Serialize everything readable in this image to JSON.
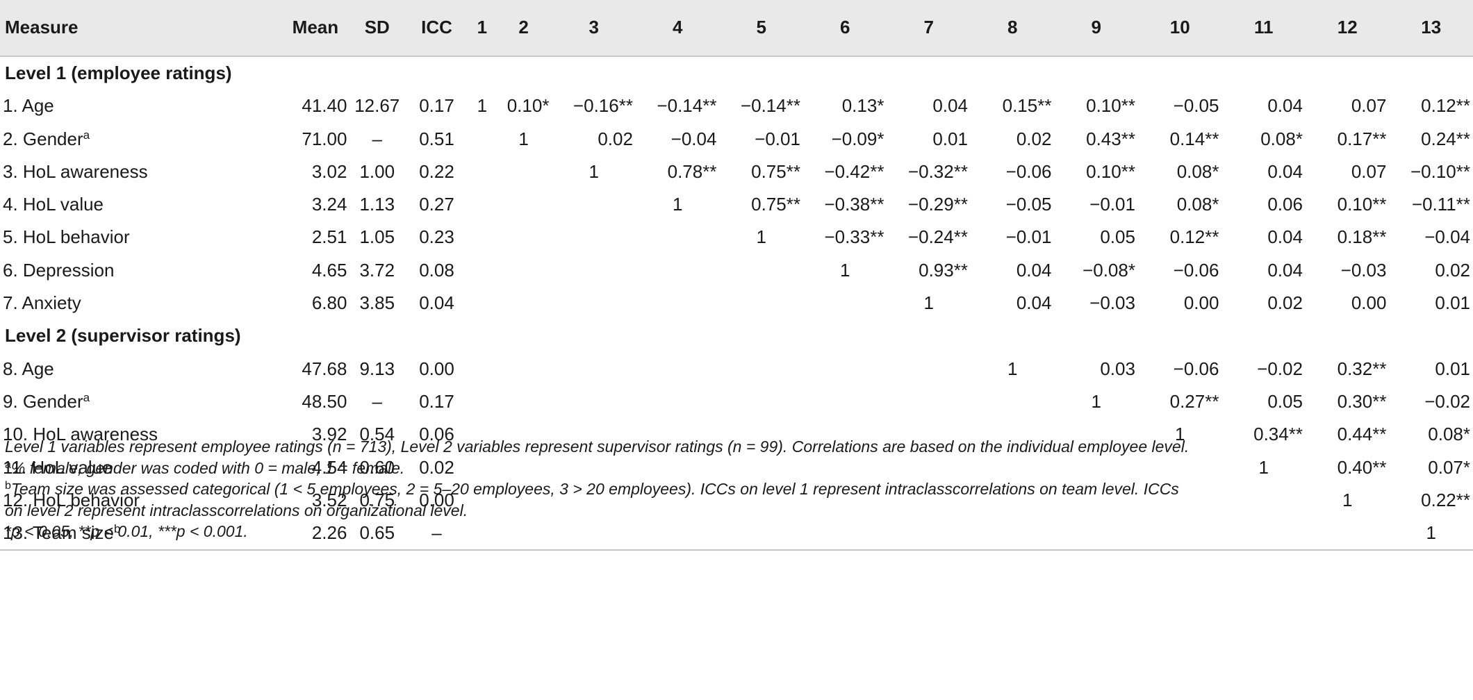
{
  "table": {
    "headers": [
      "Measure",
      "Mean",
      "SD",
      "ICC",
      "1",
      "2",
      "3",
      "4",
      "5",
      "6",
      "7",
      "8",
      "9",
      "10",
      "11",
      "12",
      "13"
    ],
    "section1": "Level 1 (employee ratings)",
    "section2": "Level 2 (supervisor ratings)",
    "rows": [
      {
        "label": "1. Age",
        "sup": "",
        "mean": "41.40",
        "sd": "12.67",
        "icc": "0.17",
        "cells": [
          "1",
          "0.10*",
          "−0.16**",
          "−0.14**",
          "−0.14**",
          "0.13*",
          "0.04",
          "0.15**",
          "0.10**",
          "−0.05",
          "0.04",
          "0.07",
          "0.12**"
        ]
      },
      {
        "label": "2. Gender",
        "sup": "a",
        "mean": "71.00",
        "sd": "–",
        "icc": "0.51",
        "cells": [
          "",
          "1",
          "0.02",
          "−0.04",
          "−0.01",
          "−0.09*",
          "0.01",
          "0.02",
          "0.43**",
          "0.14**",
          "0.08*",
          "0.17**",
          "0.24**"
        ]
      },
      {
        "label": "3. HoL awareness",
        "sup": "",
        "mean": "3.02",
        "sd": "1.00",
        "icc": "0.22",
        "cells": [
          "",
          "",
          "1",
          "0.78**",
          "0.75**",
          "−0.42**",
          "−0.32**",
          "−0.06",
          "0.10**",
          "0.08*",
          "0.04",
          "0.07",
          "−0.10**"
        ]
      },
      {
        "label": "4. HoL value",
        "sup": "",
        "mean": "3.24",
        "sd": "1.13",
        "icc": "0.27",
        "cells": [
          "",
          "",
          "",
          "1",
          "0.75**",
          "−0.38**",
          "−0.29**",
          "−0.05",
          "−0.01",
          "0.08*",
          "0.06",
          "0.10**",
          "−0.11**"
        ]
      },
      {
        "label": "5. HoL behavior",
        "sup": "",
        "mean": "2.51",
        "sd": "1.05",
        "icc": "0.23",
        "cells": [
          "",
          "",
          "",
          "",
          "1",
          "−0.33**",
          "−0.24**",
          "−0.01",
          "0.05",
          "0.12**",
          "0.04",
          "0.18**",
          "−0.04"
        ]
      },
      {
        "label": "6. Depression",
        "sup": "",
        "mean": "4.65",
        "sd": "3.72",
        "icc": "0.08",
        "cells": [
          "",
          "",
          "",
          "",
          "",
          "1",
          "0.93**",
          "0.04",
          "−0.08*",
          "−0.06",
          "0.04",
          "−0.03",
          "0.02"
        ]
      },
      {
        "label": "7. Anxiety",
        "sup": "",
        "mean": "6.80",
        "sd": "3.85",
        "icc": "0.04",
        "cells": [
          "",
          "",
          "",
          "",
          "",
          "",
          "1",
          "0.04",
          "−0.03",
          "0.00",
          "0.02",
          "0.00",
          "0.01"
        ]
      },
      {
        "label": "8. Age",
        "sup": "",
        "mean": "47.68",
        "sd": "9.13",
        "icc": "0.00",
        "cells": [
          "",
          "",
          "",
          "",
          "",
          "",
          "",
          "1",
          "0.03",
          "−0.06",
          "−0.02",
          "0.32**",
          "0.01"
        ]
      },
      {
        "label": "9. Gender",
        "sup": "a",
        "mean": "48.50",
        "sd": "–",
        "icc": "0.17",
        "cells": [
          "",
          "",
          "",
          "",
          "",
          "",
          "",
          "",
          "1",
          "0.27**",
          "0.05",
          "0.30**",
          "−0.02"
        ]
      },
      {
        "label": "10. HoL awareness",
        "sup": "",
        "mean": "3.92",
        "sd": "0.54",
        "icc": "0.06",
        "cells": [
          "",
          "",
          "",
          "",
          "",
          "",
          "",
          "",
          "",
          "1",
          "0.34**",
          "0.44**",
          "0.08*"
        ]
      },
      {
        "label": "11. HoL value",
        "sup": "",
        "mean": "4.54",
        "sd": "0.60",
        "icc": "0.02",
        "cells": [
          "",
          "",
          "",
          "",
          "",
          "",
          "",
          "",
          "",
          "",
          "1",
          "0.40**",
          "0.07*"
        ]
      },
      {
        "label": "12. HoL behavior",
        "sup": "",
        "mean": "3.52",
        "sd": "0.75",
        "icc": "0.00",
        "cells": [
          "",
          "",
          "",
          "",
          "",
          "",
          "",
          "",
          "",
          "",
          "",
          "1",
          "0.22**"
        ]
      },
      {
        "label": "13. Team size",
        "sup": "b",
        "mean": "2.26",
        "sd": "0.65",
        "icc": "–",
        "cells": [
          "",
          "",
          "",
          "",
          "",
          "",
          "",
          "",
          "",
          "",
          "",
          "",
          "1"
        ]
      }
    ]
  },
  "notes": {
    "main": "Level 1 variables represent employee ratings (n = 713), Level 2 variables represent supervisor ratings (n = 99). Correlations are based on the individual employee level.",
    "a_sup": "a",
    "a": "% female, gender was coded with 0 = male, 1 = female.",
    "b_sup": "b",
    "b_line1": "Team size was assessed categorical (1 < 5 employees, 2 = 5–20 employees, 3 > 20 employees). ICCs on level 1 represent intraclasscorrelations on team level. ICCs",
    "b_line2": "on level 2 represent intraclasscorrelations on organizational level.",
    "p": "*p < 0.05, **p < 0.01, ***p < 0.001."
  }
}
